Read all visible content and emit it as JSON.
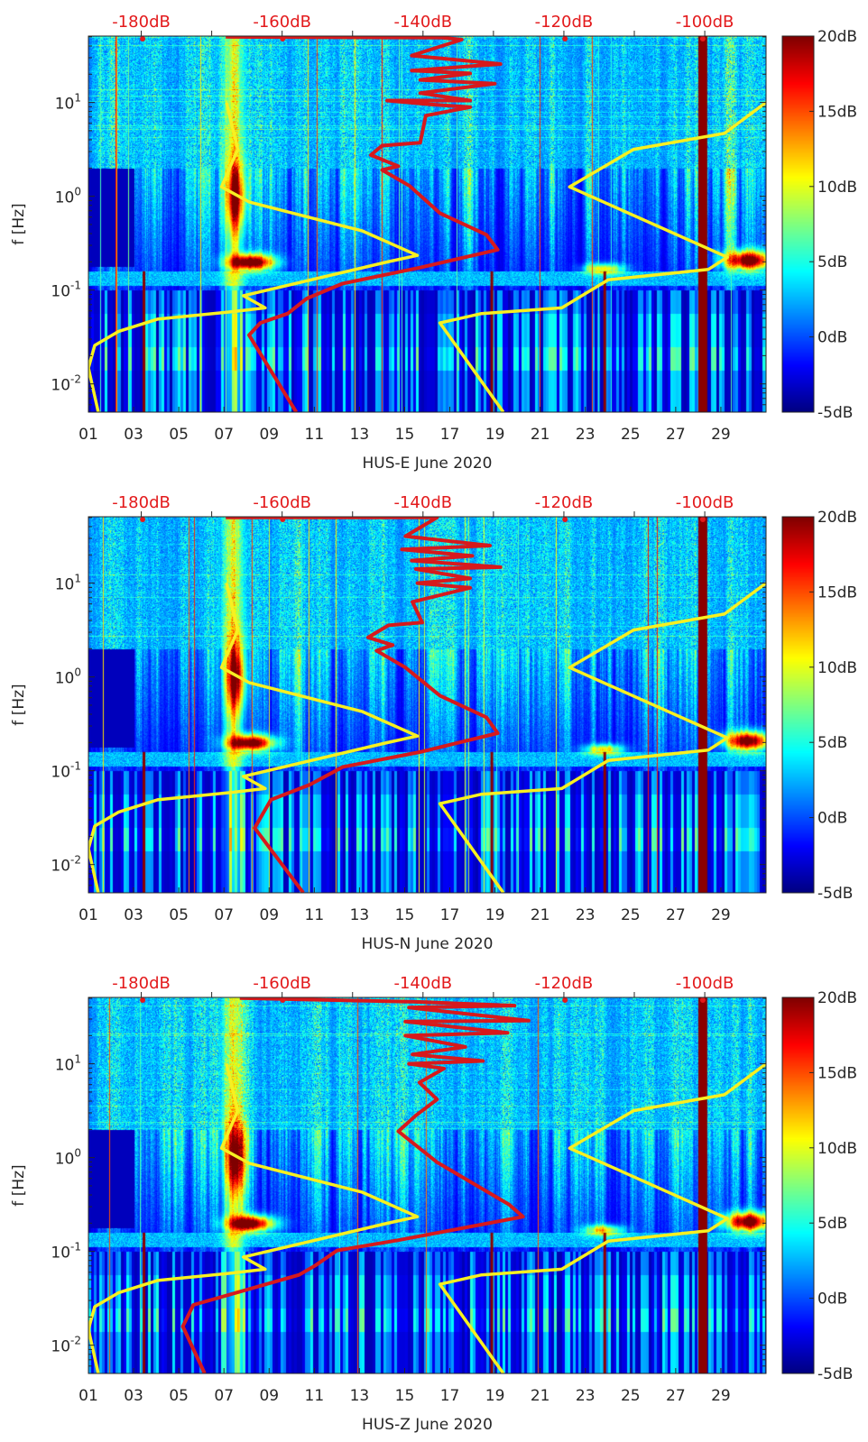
{
  "chart_data": [
    {
      "type": "heatmap",
      "title": "HUS-E June 2020",
      "xlabel": "HUS-E June 2020",
      "ylabel": "f [Hz]",
      "xlim": [
        1,
        31
      ],
      "x_ticks": [
        "01",
        "03",
        "05",
        "07",
        "09",
        "11",
        "13",
        "15",
        "17",
        "19",
        "21",
        "23",
        "25",
        "27",
        "29"
      ],
      "ylim": [
        0.005,
        51
      ],
      "y_scale": "log",
      "y_tick_base": "10",
      "y_tick_exponents": [
        "1",
        "0",
        "-1",
        "-2"
      ],
      "top_axis": {
        "xlim": [
          -187.5,
          -91.3
        ],
        "ticks": [
          "-180dB",
          "-160dB",
          "-140dB",
          "-120dB",
          "-100dB"
        ],
        "tick_values": [
          -180,
          -160,
          -140,
          -120,
          -100
        ]
      },
      "colorbar": {
        "range": [
          -5,
          20
        ],
        "ticks": [
          "20dB",
          "15dB",
          "10dB",
          "5dB",
          "0dB",
          "-5dB"
        ],
        "tick_values": [
          20,
          15,
          10,
          5,
          0,
          -5
        ],
        "colormap": "jet"
      },
      "series": [
        {
          "name": "low-noise model",
          "color": "#f7f021",
          "points_db_logf": [
            [
              -186.1,
              -2.3
            ],
            [
              -187.5,
              -1.83
            ],
            [
              -186.6,
              -1.59
            ],
            [
              -183.2,
              -1.44
            ],
            [
              -177.7,
              -1.31
            ],
            [
              -167.1,
              -1.23
            ],
            [
              -162.4,
              -1.19
            ],
            [
              -165.5,
              -1.06
            ],
            [
              -145.1,
              -0.7
            ],
            [
              -140.8,
              -0.63
            ],
            [
              -148.6,
              -0.37
            ],
            [
              -164.7,
              -0.06
            ],
            [
              -168.6,
              0.1
            ],
            [
              -166.3,
              0.5
            ],
            [
              -167.9,
              1.0
            ]
          ]
        },
        {
          "name": "high-noise model",
          "color": "#f7f021",
          "points_db_logf": [
            [
              -128.6,
              -2.3
            ],
            [
              -137.6,
              -1.35
            ],
            [
              -131.7,
              -1.25
            ],
            [
              -120.3,
              -1.19
            ],
            [
              -113.7,
              -0.89
            ],
            [
              -99.5,
              -0.78
            ],
            [
              -96.8,
              -0.65
            ],
            [
              -119.2,
              0.1
            ],
            [
              -110.1,
              0.5
            ],
            [
              -97.2,
              0.67
            ],
            [
              -91.3,
              1.0
            ]
          ]
        },
        {
          "name": "station PSD",
          "color": "#d7191c",
          "points_db_logf": [
            [
              -158.0,
              -2.3
            ],
            [
              -164.7,
              -1.48
            ],
            [
              -163.1,
              -1.35
            ],
            [
              -159.2,
              -1.25
            ],
            [
              -156.5,
              -1.09
            ],
            [
              -151.4,
              -0.93
            ],
            [
              -140.4,
              -0.76
            ],
            [
              -129.4,
              -0.57
            ],
            [
              -131.0,
              -0.41
            ],
            [
              -137.6,
              -0.18
            ],
            [
              -141.9,
              0.11
            ],
            [
              -145.8,
              0.28
            ],
            [
              -143.5,
              0.32
            ],
            [
              -147.4,
              0.44
            ],
            [
              -145.8,
              0.54
            ],
            [
              -140.4,
              0.57
            ],
            [
              -139.6,
              0.86
            ],
            [
              -133.3,
              0.95
            ],
            [
              -139.0,
              0.98
            ],
            [
              -145.1,
              1.02
            ],
            [
              -133.3,
              1.02
            ],
            [
              -140.4,
              1.1
            ],
            [
              -129.8,
              1.2
            ],
            [
              -140.4,
              1.24
            ],
            [
              -133.3,
              1.31
            ],
            [
              -141.6,
              1.34
            ],
            [
              -129.0,
              1.41
            ],
            [
              -141.6,
              1.5
            ],
            [
              -134.5,
              1.67
            ],
            [
              -137.3,
              1.69
            ],
            [
              -168.0,
              1.7
            ]
          ]
        }
      ]
    },
    {
      "type": "heatmap",
      "title": "HUS-N June 2020",
      "xlabel": "HUS-N June 2020",
      "ylabel": "f [Hz]",
      "xlim": [
        1,
        31
      ],
      "x_ticks": [
        "01",
        "03",
        "05",
        "07",
        "09",
        "11",
        "13",
        "15",
        "17",
        "19",
        "21",
        "23",
        "25",
        "27",
        "29"
      ],
      "ylim": [
        0.005,
        51
      ],
      "y_scale": "log",
      "y_tick_base": "10",
      "y_tick_exponents": [
        "1",
        "0",
        "-1",
        "-2"
      ],
      "top_axis": {
        "xlim": [
          -187.5,
          -91.3
        ],
        "ticks": [
          "-180dB",
          "-160dB",
          "-140dB",
          "-120dB",
          "-100dB"
        ],
        "tick_values": [
          -180,
          -160,
          -140,
          -120,
          -100
        ]
      },
      "colorbar": {
        "range": [
          -5,
          20
        ],
        "ticks": [
          "20dB",
          "15dB",
          "10dB",
          "5dB",
          "0dB",
          "-5dB"
        ],
        "tick_values": [
          20,
          15,
          10,
          5,
          0,
          -5
        ],
        "colormap": "jet"
      },
      "series": [
        {
          "name": "low-noise model",
          "color": "#f7f021",
          "points_db_logf": [
            [
              -186.1,
              -2.3
            ],
            [
              -187.5,
              -1.83
            ],
            [
              -186.6,
              -1.59
            ],
            [
              -183.2,
              -1.44
            ],
            [
              -177.7,
              -1.31
            ],
            [
              -167.1,
              -1.23
            ],
            [
              -162.4,
              -1.19
            ],
            [
              -165.5,
              -1.06
            ],
            [
              -145.1,
              -0.7
            ],
            [
              -140.8,
              -0.63
            ],
            [
              -148.6,
              -0.37
            ],
            [
              -164.7,
              -0.06
            ],
            [
              -168.6,
              0.1
            ],
            [
              -166.3,
              0.5
            ],
            [
              -167.9,
              1.0
            ]
          ]
        },
        {
          "name": "high-noise model",
          "color": "#f7f021",
          "points_db_logf": [
            [
              -128.6,
              -2.3
            ],
            [
              -137.6,
              -1.35
            ],
            [
              -131.7,
              -1.25
            ],
            [
              -120.3,
              -1.19
            ],
            [
              -113.7,
              -0.89
            ],
            [
              -99.5,
              -0.78
            ],
            [
              -96.8,
              -0.65
            ],
            [
              -119.2,
              0.1
            ],
            [
              -110.1,
              0.5
            ],
            [
              -97.2,
              0.67
            ],
            [
              -91.3,
              1.0
            ]
          ]
        },
        {
          "name": "station PSD",
          "color": "#d7191c",
          "points_db_logf": [
            [
              -157.0,
              -2.3
            ],
            [
              -163.9,
              -1.61
            ],
            [
              -161.6,
              -1.31
            ],
            [
              -156.1,
              -1.15
            ],
            [
              -151.4,
              -0.96
            ],
            [
              -140.4,
              -0.8
            ],
            [
              -129.4,
              -0.6
            ],
            [
              -131.0,
              -0.43
            ],
            [
              -137.6,
              -0.2
            ],
            [
              -142.5,
              0.1
            ],
            [
              -146.6,
              0.28
            ],
            [
              -144.3,
              0.34
            ],
            [
              -147.8,
              0.42
            ],
            [
              -144.9,
              0.55
            ],
            [
              -140.1,
              0.58
            ],
            [
              -141.5,
              0.8
            ],
            [
              -133.3,
              0.95
            ],
            [
              -140.8,
              1.0
            ],
            [
              -133.3,
              1.05
            ],
            [
              -141.0,
              1.15
            ],
            [
              -129.0,
              1.17
            ],
            [
              -141.6,
              1.24
            ],
            [
              -133.0,
              1.29
            ],
            [
              -143.0,
              1.36
            ],
            [
              -130.5,
              1.4
            ],
            [
              -142.5,
              1.5
            ],
            [
              -138.0,
              1.7
            ],
            [
              -168.0,
              1.7
            ]
          ]
        }
      ]
    },
    {
      "type": "heatmap",
      "title": "HUS-Z June 2020",
      "xlabel": "HUS-Z June 2020",
      "ylabel": "f [Hz]",
      "xlim": [
        1,
        31
      ],
      "x_ticks": [
        "01",
        "03",
        "05",
        "07",
        "09",
        "11",
        "13",
        "15",
        "17",
        "19",
        "21",
        "23",
        "25",
        "27",
        "29"
      ],
      "ylim": [
        0.005,
        51
      ],
      "y_scale": "log",
      "y_tick_base": "10",
      "y_tick_exponents": [
        "1",
        "0",
        "-1",
        "-2"
      ],
      "top_axis": {
        "xlim": [
          -187.5,
          -91.3
        ],
        "ticks": [
          "-180dB",
          "-160dB",
          "-140dB",
          "-120dB",
          "-100dB"
        ],
        "tick_values": [
          -180,
          -160,
          -140,
          -120,
          -100
        ]
      },
      "colorbar": {
        "range": [
          -5,
          20
        ],
        "ticks": [
          "20dB",
          "15dB",
          "10dB",
          "5dB",
          "0dB",
          "-5dB"
        ],
        "tick_values": [
          20,
          15,
          10,
          5,
          0,
          -5
        ],
        "colormap": "jet"
      },
      "series": [
        {
          "name": "low-noise model",
          "color": "#f7f021",
          "points_db_logf": [
            [
              -186.1,
              -2.3
            ],
            [
              -187.5,
              -1.83
            ],
            [
              -186.6,
              -1.59
            ],
            [
              -183.2,
              -1.44
            ],
            [
              -177.7,
              -1.31
            ],
            [
              -167.1,
              -1.23
            ],
            [
              -162.4,
              -1.19
            ],
            [
              -165.5,
              -1.06
            ],
            [
              -145.1,
              -0.7
            ],
            [
              -140.8,
              -0.63
            ],
            [
              -148.6,
              -0.37
            ],
            [
              -164.7,
              -0.06
            ],
            [
              -168.6,
              0.1
            ],
            [
              -166.3,
              0.5
            ],
            [
              -167.9,
              1.0
            ]
          ]
        },
        {
          "name": "high-noise model",
          "color": "#f7f021",
          "points_db_logf": [
            [
              -128.6,
              -2.3
            ],
            [
              -137.6,
              -1.35
            ],
            [
              -131.7,
              -1.25
            ],
            [
              -120.3,
              -1.19
            ],
            [
              -113.7,
              -0.89
            ],
            [
              -99.5,
              -0.78
            ],
            [
              -96.8,
              -0.65
            ],
            [
              -119.2,
              0.1
            ],
            [
              -110.1,
              0.5
            ],
            [
              -97.2,
              0.67
            ],
            [
              -91.3,
              1.0
            ]
          ]
        },
        {
          "name": "station PSD",
          "color": "#d7191c",
          "points_db_logf": [
            [
              -171.0,
              -2.3
            ],
            [
              -174.1,
              -1.8
            ],
            [
              -172.6,
              -1.57
            ],
            [
              -157.6,
              -1.25
            ],
            [
              -155.3,
              -1.15
            ],
            [
              -152.2,
              -0.99
            ],
            [
              -143.5,
              -0.88
            ],
            [
              -125.8,
              -0.63
            ],
            [
              -127.8,
              -0.5
            ],
            [
              -138.0,
              -0.05
            ],
            [
              -143.5,
              0.28
            ],
            [
              -141.0,
              0.45
            ],
            [
              -138.0,
              0.62
            ],
            [
              -140.5,
              0.8
            ],
            [
              -137.0,
              0.95
            ],
            [
              -142.0,
              1.0
            ],
            [
              -131.5,
              1.03
            ],
            [
              -141.5,
              1.1
            ],
            [
              -134.0,
              1.18
            ],
            [
              -142.5,
              1.3
            ],
            [
              -128.0,
              1.33
            ],
            [
              -142.5,
              1.45
            ],
            [
              -125.0,
              1.46
            ],
            [
              -142.0,
              1.6
            ],
            [
              -127.0,
              1.62
            ],
            [
              -141.0,
              1.66
            ],
            [
              -166.0,
              1.7
            ]
          ]
        }
      ]
    }
  ]
}
